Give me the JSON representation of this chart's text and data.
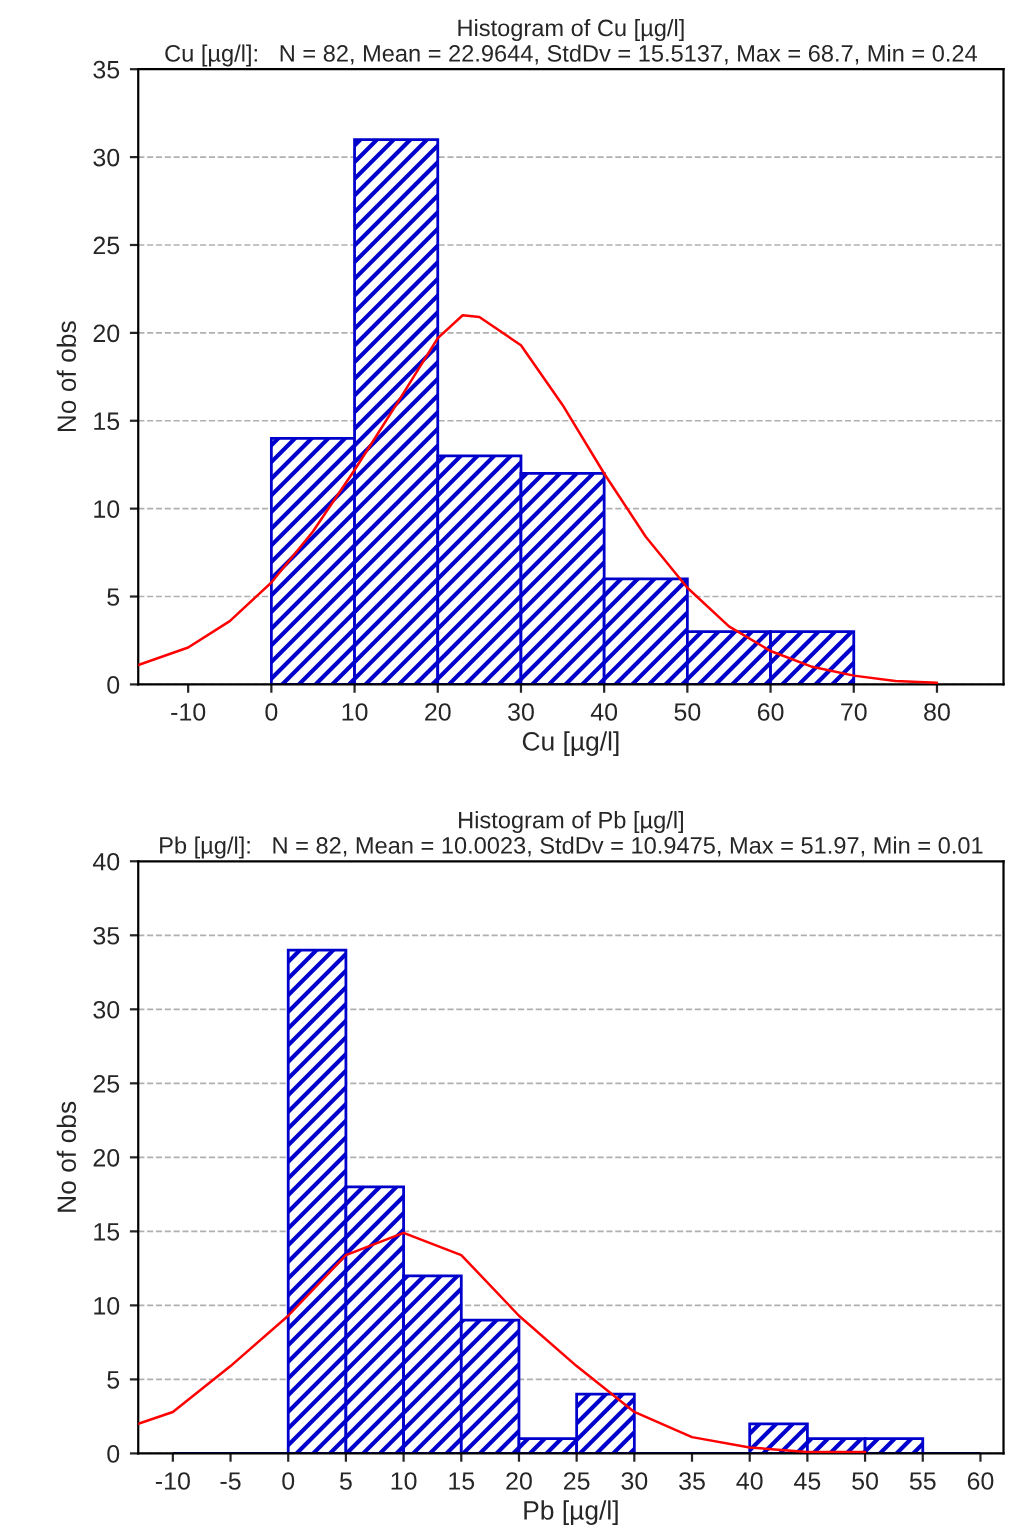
{
  "chart_data": [
    {
      "type": "histogram",
      "title": "Histogram of Cu [µg/l]",
      "subtitle": "Cu [µg/l]:   N = 82, Mean = 22.9644, StdDv = 15.5137, Max = 68.7, Min = 0.24",
      "xlabel": "Cu [µg/l]",
      "ylabel": "No of obs",
      "bins": [
        0,
        10,
        20,
        30,
        40,
        50,
        60,
        70
      ],
      "values": [
        14,
        31,
        13,
        12,
        6,
        3,
        3
      ],
      "color": "#0000cc",
      "series": [
        {
          "type": "line",
          "color": "#ff0000",
          "x": [
            -16,
            -10,
            -5,
            0,
            5,
            10,
            15,
            20,
            23,
            25,
            30,
            35,
            40,
            45,
            50,
            55,
            60,
            65,
            70,
            75,
            80
          ],
          "values": [
            1.1,
            2.1,
            3.6,
            5.8,
            8.7,
            12.2,
            15.9,
            19.7,
            21,
            20.9,
            19.3,
            15.9,
            12.0,
            8.4,
            5.5,
            3.3,
            1.9,
            1.0,
            0.5,
            0.2,
            0.1
          ]
        }
      ],
      "xlim": [
        -16,
        88
      ],
      "ylim": [
        0,
        35
      ],
      "xticks": [
        -10,
        0,
        10,
        20,
        30,
        40,
        50,
        60,
        70,
        80
      ],
      "yticks": [
        0,
        5,
        10,
        15,
        20,
        25,
        30,
        35
      ],
      "grid": "y"
    },
    {
      "type": "histogram",
      "title": "Histogram of Pb [µg/l]",
      "subtitle": "Pb [µg/l]:   N = 82, Mean = 10.0023, StdDv = 10.9475, Max = 51.97, Min = 0.01",
      "xlabel": "Pb [µg/l]",
      "ylabel": "No of obs",
      "bins": [
        -10,
        -5,
        0,
        5,
        10,
        15,
        20,
        25,
        30,
        35,
        40,
        45,
        50,
        55,
        60
      ],
      "values": [
        0,
        0,
        34,
        18,
        12,
        9,
        1,
        4,
        0,
        0,
        2,
        1,
        1,
        0
      ],
      "color": "#0000cc",
      "series": [
        {
          "type": "line",
          "color": "#ff0000",
          "x": [
            -13,
            -10,
            -5,
            0,
            5,
            10,
            15,
            20,
            25,
            30,
            35,
            40,
            45,
            50
          ],
          "values": [
            2.0,
            2.8,
            5.9,
            9.3,
            13.4,
            14.9,
            13.4,
            9.3,
            5.9,
            2.8,
            1.1,
            0.4,
            0.1,
            0.1
          ]
        }
      ],
      "xlim": [
        -13,
        62
      ],
      "ylim": [
        0,
        40
      ],
      "xticks": [
        -10,
        -5,
        0,
        5,
        10,
        15,
        20,
        25,
        30,
        35,
        40,
        45,
        50,
        55,
        60
      ],
      "yticks": [
        0,
        5,
        10,
        15,
        20,
        25,
        30,
        35,
        40
      ],
      "grid": "y"
    }
  ]
}
